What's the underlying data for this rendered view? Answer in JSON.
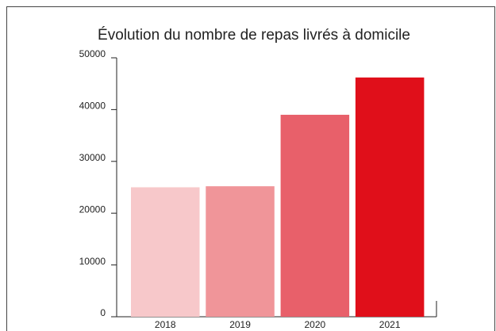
{
  "chart_data": {
    "type": "bar",
    "title": "Évolution du nombre de repas livrés à domicile",
    "categories": [
      "2018",
      "2019",
      "2020",
      "2021"
    ],
    "values": [
      25000,
      25200,
      39000,
      46200
    ],
    "colors": [
      "#f7c8ca",
      "#f09599",
      "#e8606a",
      "#e00f1a"
    ],
    "ylim": [
      0,
      50000
    ],
    "yticks": [
      0,
      10000,
      20000,
      30000,
      40000,
      50000
    ],
    "grid": false
  }
}
